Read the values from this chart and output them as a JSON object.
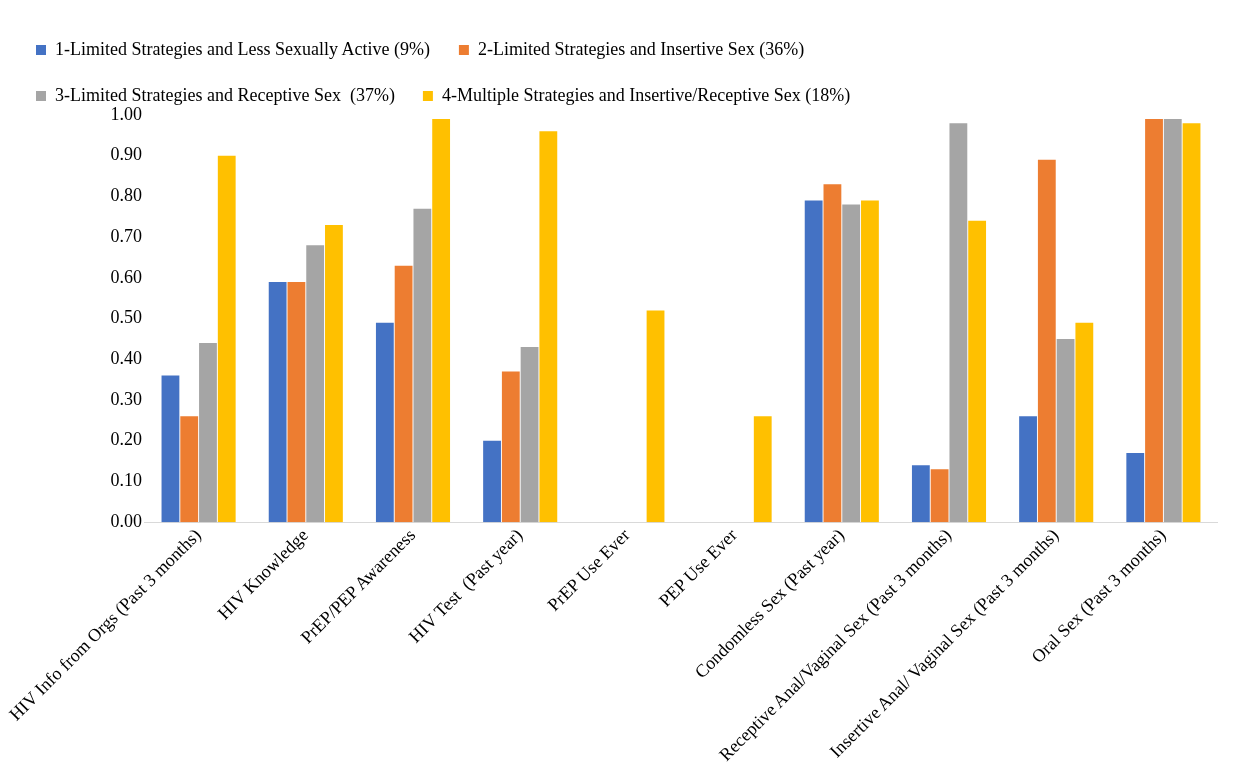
{
  "chart_data": {
    "type": "bar",
    "categories": [
      "HIV Info from Orgs (Past 3 months)",
      "HIV Knowledge",
      "PrEP/PEP Awareness",
      "HIV Test  (Past year)",
      "PrEP Use Ever",
      "PEP Use Ever",
      "Condomless Sex (Past year)",
      "Receptive Anal/Vaginal Sex (Past 3 months)",
      "Insertive Anal/ Vaginal Sex (Past 3 months)",
      "Oral Sex (Past 3 months)"
    ],
    "series": [
      {
        "name": "1-Limited Strategies and Less Sexually Active (9%)",
        "color": "#4472c4",
        "values": [
          0.36,
          0.59,
          0.49,
          0.2,
          0,
          0,
          0.79,
          0.14,
          0.26,
          0.17
        ]
      },
      {
        "name": "2-Limited Strategies and Insertive Sex (36%)",
        "color": "#ed7d31",
        "values": [
          0.26,
          0.59,
          0.63,
          0.37,
          0,
          0,
          0.83,
          0.13,
          0.89,
          0.99
        ]
      },
      {
        "name": "3-Limited Strategies and Receptive Sex  (37%)",
        "color": "#a5a5a5",
        "values": [
          0.44,
          0.68,
          0.77,
          0.43,
          0,
          0,
          0.78,
          0.98,
          0.45,
          0.99
        ]
      },
      {
        "name": "4-Multiple Strategies and Insertive/Receptive Sex (18%)",
        "color": "#ffc000",
        "values": [
          0.9,
          0.73,
          0.99,
          0.96,
          0.52,
          0.26,
          0.79,
          0.74,
          0.49,
          0.98
        ]
      }
    ],
    "ylim": [
      0,
      1
    ],
    "yticks": [
      {
        "value": 0,
        "label": "0.00"
      },
      {
        "value": 0.1,
        "label": "0.10"
      },
      {
        "value": 0.2,
        "label": "0.20"
      },
      {
        "value": 0.3,
        "label": "0.30"
      },
      {
        "value": 0.4,
        "label": "0.40"
      },
      {
        "value": 0.5,
        "label": "0.50"
      },
      {
        "value": 0.6,
        "label": "0.60"
      },
      {
        "value": 0.7,
        "label": "0.70"
      },
      {
        "value": 0.8,
        "label": "0.80"
      },
      {
        "value": 0.9,
        "label": "0.90"
      },
      {
        "value": 1,
        "label": "1.00"
      }
    ],
    "grid": false,
    "legend": "top"
  }
}
